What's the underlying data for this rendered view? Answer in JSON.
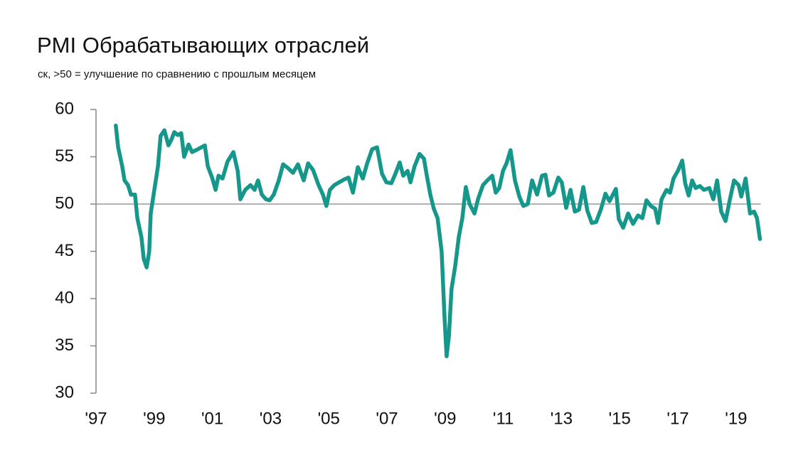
{
  "chart_data": {
    "type": "line",
    "title": "PMI Обрабатывающих отраслей",
    "subtitle": "ск, >50 = улучшение по сравнению с прошлым месяцем",
    "xlim": [
      1997,
      2019.85
    ],
    "xticks": [
      {
        "value": 1997,
        "label": "'97"
      },
      {
        "value": 1999,
        "label": "'99"
      },
      {
        "value": 2001,
        "label": "'01"
      },
      {
        "value": 2003,
        "label": "'03"
      },
      {
        "value": 2005,
        "label": "'05"
      },
      {
        "value": 2007,
        "label": "'07"
      },
      {
        "value": 2009,
        "label": "'09"
      },
      {
        "value": 2011,
        "label": "'11"
      },
      {
        "value": 2013,
        "label": "'13"
      },
      {
        "value": 2015,
        "label": "'15"
      },
      {
        "value": 2017,
        "label": "'17"
      },
      {
        "value": 2019,
        "label": "'19"
      }
    ],
    "ylim": [
      30,
      60
    ],
    "yticks": [
      30,
      35,
      40,
      45,
      50,
      55,
      60
    ],
    "reference_line": 50,
    "series": [
      {
        "color": "#16978c",
        "x": [
          1997.68,
          1997.76,
          1997.9,
          1997.98,
          1998.1,
          1998.2,
          1998.34,
          1998.42,
          1998.56,
          1998.64,
          1998.74,
          1998.83,
          1998.88,
          1999.03,
          1999.13,
          1999.22,
          1999.35,
          1999.49,
          1999.59,
          1999.69,
          1999.81,
          1999.93,
          2000.03,
          2000.18,
          2000.3,
          2000.5,
          2000.74,
          2000.84,
          2000.99,
          2001.11,
          2001.21,
          2001.35,
          2001.52,
          2001.72,
          2001.87,
          2001.96,
          2002.13,
          2002.31,
          2002.45,
          2002.57,
          2002.7,
          2002.84,
          2002.97,
          2003.11,
          2003.28,
          2003.43,
          2003.6,
          2003.77,
          2003.94,
          2004.14,
          2004.29,
          2004.46,
          2004.65,
          2004.8,
          2004.92,
          2005.04,
          2005.19,
          2005.36,
          2005.53,
          2005.68,
          2005.83,
          2006.0,
          2006.17,
          2006.32,
          2006.49,
          2006.66,
          2006.83,
          2006.98,
          2007.15,
          2007.29,
          2007.44,
          2007.56,
          2007.71,
          2007.81,
          2007.95,
          2008.12,
          2008.27,
          2008.37,
          2008.49,
          2008.61,
          2008.74,
          2008.88,
          2008.98,
          2009.05,
          2009.13,
          2009.22,
          2009.35,
          2009.47,
          2009.59,
          2009.71,
          2009.84,
          2010.01,
          2010.13,
          2010.3,
          2010.45,
          2010.62,
          2010.74,
          2010.86,
          2010.99,
          2011.11,
          2011.25,
          2011.4,
          2011.55,
          2011.69,
          2011.84,
          2011.99,
          2012.16,
          2012.33,
          2012.45,
          2012.57,
          2012.72,
          2012.89,
          2013.01,
          2013.16,
          2013.31,
          2013.46,
          2013.6,
          2013.75,
          2013.89,
          2014.04,
          2014.19,
          2014.36,
          2014.51,
          2014.65,
          2014.87,
          2014.97,
          2015.12,
          2015.29,
          2015.46,
          2015.63,
          2015.78,
          2015.92,
          2016.07,
          2016.22,
          2016.32,
          2016.44,
          2016.61,
          2016.73,
          2016.85,
          2017.0,
          2017.15,
          2017.25,
          2017.37,
          2017.49,
          2017.61,
          2017.76,
          2017.9,
          2018.08,
          2018.22,
          2018.35,
          2018.49,
          2018.64,
          2018.79,
          2018.93,
          2019.09,
          2019.18,
          2019.33,
          2019.48,
          2019.62,
          2019.72,
          2019.82
        ],
        "values": [
          58.3,
          56,
          54,
          52.5,
          52,
          51,
          51,
          48.5,
          46.5,
          44.2,
          43.3,
          45,
          49,
          52,
          54,
          57.2,
          57.8,
          56.2,
          56.8,
          57.6,
          57.3,
          57.5,
          55,
          56.3,
          55.5,
          55.8,
          56.2,
          54,
          52.8,
          51.5,
          53,
          52.7,
          54.5,
          55.5,
          53.5,
          50.5,
          51.5,
          52,
          51.5,
          52.5,
          51,
          50.5,
          50.4,
          51,
          52.5,
          54.2,
          53.8,
          53.3,
          54.2,
          52.5,
          54.3,
          53.6,
          52,
          51,
          49.8,
          51.5,
          52,
          52.3,
          52.6,
          52.8,
          51.2,
          53.9,
          52.7,
          54.3,
          55.8,
          56,
          53.2,
          52.3,
          52.2,
          53.2,
          54.4,
          53,
          53.5,
          52.3,
          54,
          55.3,
          54.8,
          53,
          51,
          49.5,
          48.5,
          45,
          38,
          33.9,
          36,
          41,
          43.5,
          46.5,
          48.5,
          51.8,
          50,
          49,
          50.5,
          52,
          52.5,
          53,
          51.2,
          51.7,
          53.5,
          54.3,
          55.7,
          52.5,
          50.8,
          49.8,
          50,
          52.5,
          51,
          53,
          53.1,
          50.9,
          51.2,
          52.8,
          52.3,
          49.6,
          51.5,
          49.2,
          49.4,
          51.8,
          49.3,
          48,
          48.1,
          49.5,
          51.1,
          50.3,
          51.6,
          48.4,
          47.5,
          49,
          47.9,
          48.8,
          48.5,
          50.4,
          49.8,
          49.5,
          48,
          50.5,
          51.5,
          51.2,
          52.7,
          53.5,
          54.6,
          52.2,
          50.9,
          52.5,
          51.7,
          51.9,
          51.5,
          51.7,
          50.5,
          52.5,
          49.2,
          48.2,
          50.5,
          52.5,
          52,
          50.8,
          52.7,
          49,
          49.2,
          48.5,
          46.3
        ]
      }
    ]
  }
}
